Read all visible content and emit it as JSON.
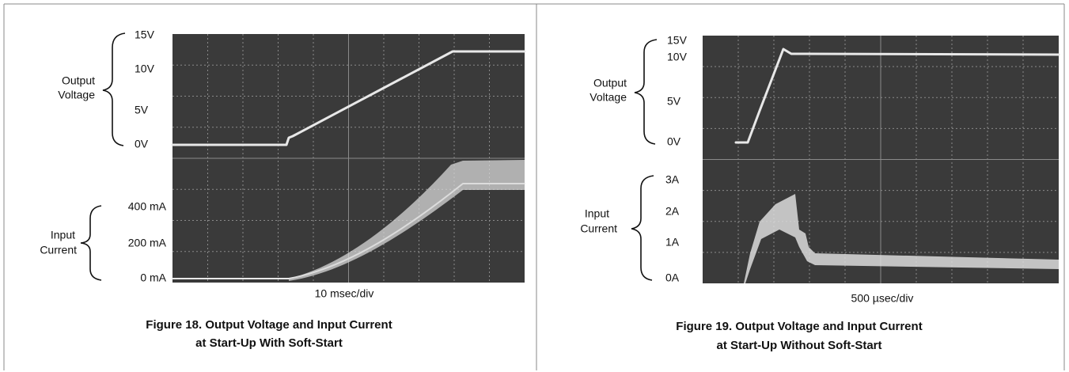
{
  "figures": [
    {
      "voltage_label": [
        "Output",
        "Voltage"
      ],
      "voltage_ticks": [
        "15V",
        "10V",
        "5V",
        "0V"
      ],
      "current_label": [
        "Input",
        "Current"
      ],
      "current_ticks": [
        "400 mA",
        "200 mA",
        "0 mA"
      ],
      "timebase": "10 msec/div",
      "caption": [
        "Figure 18. Output Voltage and Input Current",
        "at Start-Up With Soft-Start"
      ]
    },
    {
      "voltage_label": [
        "Output",
        "Voltage"
      ],
      "voltage_ticks": [
        "15V",
        "10V",
        "5V",
        "0V"
      ],
      "current_label": [
        "Input",
        "Current"
      ],
      "current_ticks": [
        "3A",
        "2A",
        "1A",
        "0A"
      ],
      "timebase": "500 µsec/div",
      "caption": [
        "Figure 19. Output Voltage and Input Current",
        "at Start-Up Without Soft-Start"
      ]
    }
  ]
}
